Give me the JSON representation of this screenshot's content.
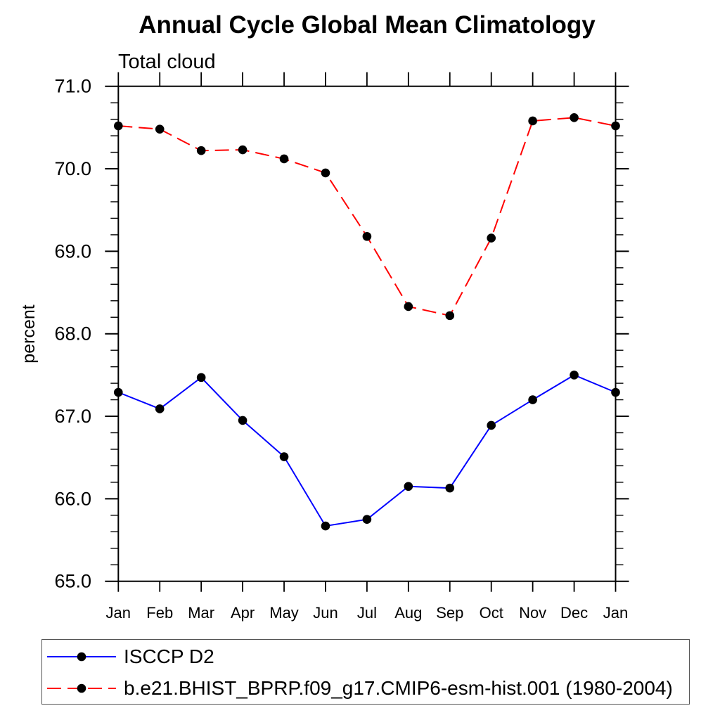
{
  "chart_data": {
    "type": "line",
    "title": "Annual Cycle Global Mean Climatology",
    "subtitle": "Total cloud",
    "ylabel": "percent",
    "x": [
      "Jan",
      "Feb",
      "Mar",
      "Apr",
      "May",
      "Jun",
      "Jul",
      "Aug",
      "Sep",
      "Oct",
      "Nov",
      "Dec",
      "Jan"
    ],
    "ylim": [
      65.0,
      71.0
    ],
    "yticks": [
      "65.0",
      "66.0",
      "67.0",
      "68.0",
      "69.0",
      "70.0",
      "71.0"
    ],
    "ytick_interval": 1.0,
    "yminor_interval": 0.2,
    "grid": false,
    "legend_position": "bottom-left-box",
    "marker": {
      "shape": "circle",
      "color": "#000000"
    },
    "axis_color": "#000000",
    "series": [
      {
        "name": "ISCCP D2",
        "color": "#0000ff",
        "line_style": "solid",
        "values": [
          67.29,
          67.09,
          67.47,
          66.95,
          66.51,
          65.67,
          65.75,
          66.15,
          66.13,
          66.89,
          67.2,
          67.5,
          67.29
        ]
      },
      {
        "name": "b.e21.BHIST_BPRP.f09_g17.CMIP6-esm-hist.001 (1980-2004)",
        "color": "#ff0000",
        "line_style": "dashed",
        "values": [
          70.52,
          70.48,
          70.22,
          70.23,
          70.12,
          69.95,
          69.18,
          68.33,
          68.22,
          69.16,
          70.58,
          70.62,
          70.52
        ]
      }
    ]
  }
}
